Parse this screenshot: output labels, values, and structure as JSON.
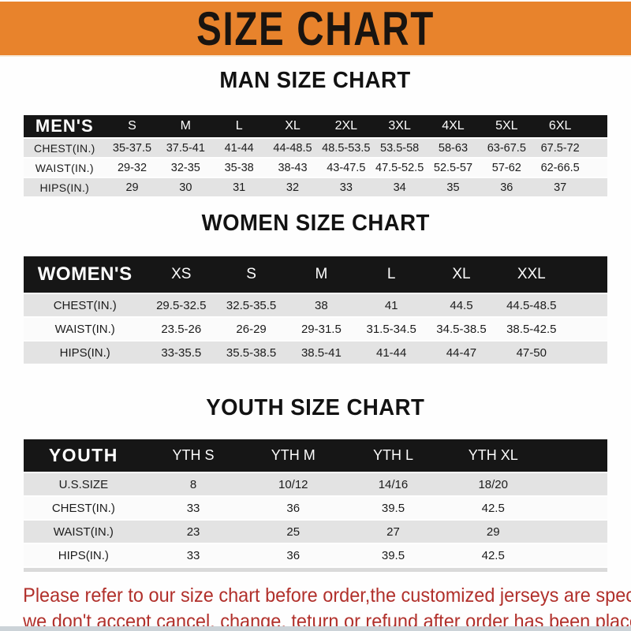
{
  "banner": {
    "title": "SIZE CHART"
  },
  "colors": {
    "banner_orange": "#e8832c",
    "table_header_black": "#161616",
    "row_shade_gray": "#e3e3e3",
    "note_red": "#b1302b"
  },
  "sections": [
    {
      "id": "men",
      "title": "MAN SIZE CHART",
      "header_label": "MEN'S",
      "columns": [
        "S",
        "M",
        "L",
        "XL",
        "2XL",
        "3XL",
        "4XL",
        "5XL",
        "6XL"
      ],
      "rows": [
        {
          "label": "CHEST(IN.)",
          "values": [
            "35-37.5",
            "37.5-41",
            "41-44",
            "44-48.5",
            "48.5-53.5",
            "53.5-58",
            "58-63",
            "63-67.5",
            "67.5-72"
          ]
        },
        {
          "label": "WAIST(IN.)",
          "values": [
            "29-32",
            "32-35",
            "35-38",
            "38-43",
            "43-47.5",
            "47.5-52.5",
            "52.5-57",
            "57-62",
            "62-66.5"
          ]
        },
        {
          "label": "HIPS(IN.)",
          "values": [
            "29",
            "30",
            "31",
            "32",
            "33",
            "34",
            "35",
            "36",
            "37"
          ]
        }
      ]
    },
    {
      "id": "women",
      "title": "WOMEN SIZE CHART",
      "header_label": "WOMEN'S",
      "columns": [
        "XS",
        "S",
        "M",
        "L",
        "XL",
        "XXL"
      ],
      "rows": [
        {
          "label": "CHEST(IN.)",
          "values": [
            "29.5-32.5",
            "32.5-35.5",
            "38",
            "41",
            "44.5",
            "44.5-48.5"
          ]
        },
        {
          "label": "WAIST(IN.)",
          "values": [
            "23.5-26",
            "26-29",
            "29-31.5",
            "31.5-34.5",
            "34.5-38.5",
            "38.5-42.5"
          ]
        },
        {
          "label": "HIPS(IN.)",
          "values": [
            "33-35.5",
            "35.5-38.5",
            "38.5-41",
            "41-44",
            "44-47",
            "47-50"
          ]
        }
      ]
    },
    {
      "id": "youth",
      "title": "YOUTH SIZE CHART",
      "header_label": "YOUTH",
      "columns": [
        "YTH S",
        "YTH M",
        "YTH L",
        "YTH XL"
      ],
      "rows": [
        {
          "label": "U.S.SIZE",
          "values": [
            "8",
            "10/12",
            "14/16",
            "18/20"
          ]
        },
        {
          "label": "CHEST(IN.)",
          "values": [
            "33",
            "36",
            "39.5",
            "42.5"
          ]
        },
        {
          "label": "WAIST(IN.)",
          "values": [
            "23",
            "25",
            "27",
            "29"
          ]
        },
        {
          "label": "HIPS(IN.)",
          "values": [
            "33",
            "36",
            "39.5",
            "42.5"
          ]
        }
      ]
    }
  ],
  "footer": {
    "line1": "Please refer to our size chart before order,the customized jerseys are special products,",
    "line2": "we don't accept cancel, change, teturn or refund after order has been placed!"
  }
}
